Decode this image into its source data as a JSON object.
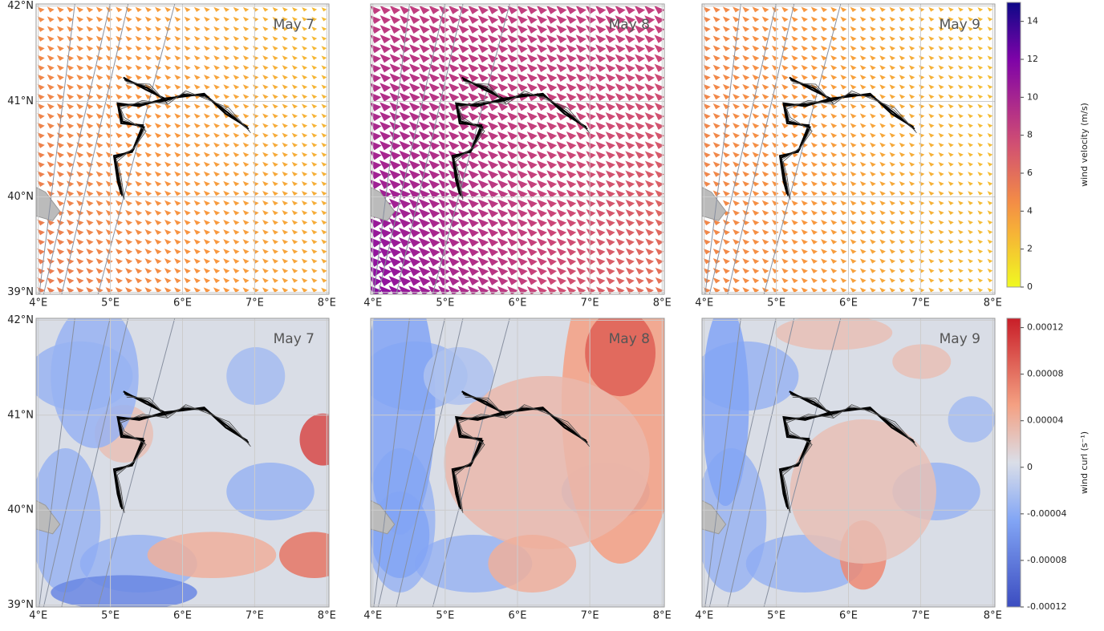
{
  "panels": [
    {
      "date": "May 7"
    },
    {
      "date": "May 8"
    },
    {
      "date": "May 9"
    },
    {
      "date": "May 7"
    },
    {
      "date": "May 8"
    },
    {
      "date": "May 9"
    }
  ],
  "lon_range": [
    3.97,
    8.03
  ],
  "lat_range": [
    38.98,
    42.02
  ],
  "lon_ticks": [
    {
      "value": 4,
      "label": "4°E"
    },
    {
      "value": 5,
      "label": "5°E"
    },
    {
      "value": 6,
      "label": "6°E"
    },
    {
      "value": 7,
      "label": "7°E"
    },
    {
      "value": 8,
      "label": "8°E"
    }
  ],
  "lat_ticks": [
    {
      "value": 39,
      "label": "39°N"
    },
    {
      "value": 40,
      "label": "40°N"
    },
    {
      "value": 41,
      "label": "41°N"
    },
    {
      "value": 42,
      "label": "42°N"
    }
  ],
  "colorbars": [
    {
      "title": "wind velocity (m/s)",
      "range": [
        0,
        15
      ],
      "ticks": [
        0,
        2,
        4,
        6,
        8,
        10,
        12,
        14
      ]
    },
    {
      "title": "wind curl (s⁻¹)",
      "range": [
        -0.00012,
        0.000128
      ],
      "ticks": [
        -0.00012,
        -8e-05,
        -4e-05,
        0,
        4e-05,
        8e-05,
        0.00012
      ]
    }
  ]
}
